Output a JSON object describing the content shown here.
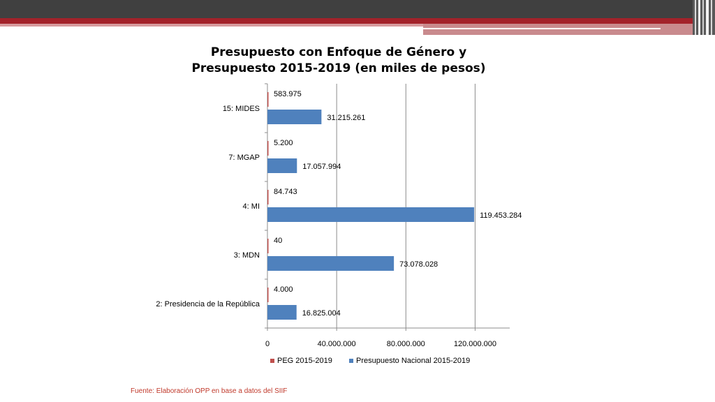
{
  "colors": {
    "top_bar": "#404040",
    "red_band": "#a3222a",
    "peg": "#c0504d",
    "national": "#4f81bd",
    "source_text": "#c0392b"
  },
  "chart_data": {
    "type": "bar",
    "orientation": "horizontal",
    "title": "Presupuesto con Enfoque de Género y Presupuesto 2015-2019 (en miles de pesos)",
    "categories": [
      "15: MIDES",
      "7: MGAP",
      "4: MI",
      "3: MDN",
      "2: Presidencia de la República"
    ],
    "series": [
      {
        "name": "PEG 2015-2019",
        "values": [
          583975,
          5200,
          84743,
          40,
          4000
        ],
        "labels": [
          "583.975",
          "5.200",
          "84.743",
          "40",
          "4.000"
        ]
      },
      {
        "name": "Presupuesto Nacional 2015-2019",
        "values": [
          31215261,
          17057994,
          119453284,
          73078028,
          16825004
        ],
        "labels": [
          "31.215.261",
          "17.057.994",
          "119.453.284",
          "73.078.028",
          "16.825.004"
        ]
      }
    ],
    "x_ticks": [
      0,
      40000000,
      80000000,
      120000000
    ],
    "x_tick_labels": [
      "0",
      "40.000.000",
      "80.000.000",
      "120.000.000"
    ],
    "xlim": [
      0,
      140000000
    ],
    "grid": "vertical",
    "legend": "bottom"
  },
  "source": "Fuente: Elaboración OPP en base a datos del SIIF"
}
